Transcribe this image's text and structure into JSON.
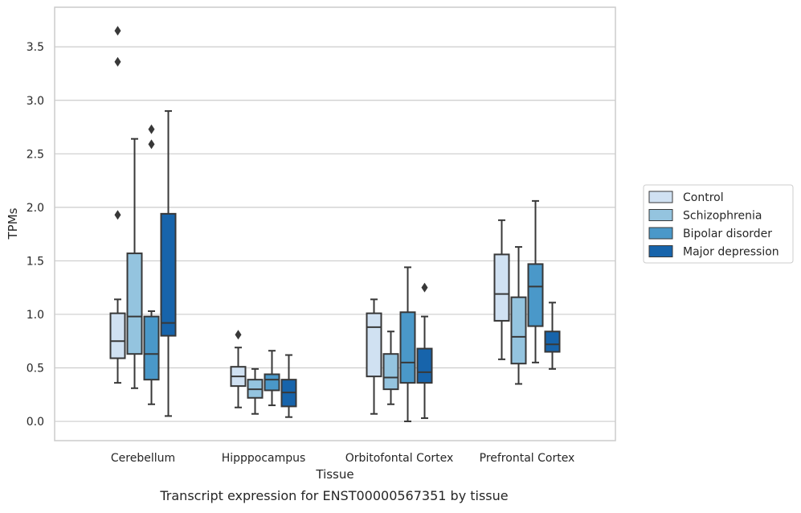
{
  "chart_data": {
    "type": "box",
    "title": "Transcript expression for ENST00000567351 by tissue",
    "xlabel": "Tissue",
    "ylabel": "TPMs",
    "ylim": [
      -0.18,
      3.87
    ],
    "yticks": [
      "0.0",
      "0.5",
      "1.0",
      "1.5",
      "2.0",
      "2.5",
      "3.0",
      "3.5"
    ],
    "grid": true,
    "legend_position": "right",
    "categories": [
      "Cerebellum",
      "Hipppocampus",
      "Orbitofontal Cortex",
      "Prefrontal Cortex"
    ],
    "series": [
      {
        "name": "Control",
        "color": "#d0e1f2",
        "boxes": [
          {
            "whislo": 0.36,
            "q1": 0.59,
            "med": 0.75,
            "q3": 1.01,
            "whishi": 1.14,
            "fliers": [
              1.93,
              3.36,
              3.65
            ]
          },
          {
            "whislo": 0.13,
            "q1": 0.33,
            "med": 0.42,
            "q3": 0.51,
            "whishi": 0.69,
            "fliers": [
              0.81
            ]
          },
          {
            "whislo": 0.07,
            "q1": 0.42,
            "med": 0.88,
            "q3": 1.01,
            "whishi": 1.14,
            "fliers": []
          },
          {
            "whislo": 0.58,
            "q1": 0.94,
            "med": 1.19,
            "q3": 1.56,
            "whishi": 1.88,
            "fliers": []
          }
        ]
      },
      {
        "name": "Schizophrenia",
        "color": "#94c4df",
        "boxes": [
          {
            "whislo": 0.31,
            "q1": 0.63,
            "med": 0.98,
            "q3": 1.57,
            "whishi": 2.64,
            "fliers": []
          },
          {
            "whislo": 0.07,
            "q1": 0.22,
            "med": 0.3,
            "q3": 0.39,
            "whishi": 0.49,
            "fliers": []
          },
          {
            "whislo": 0.16,
            "q1": 0.3,
            "med": 0.41,
            "q3": 0.63,
            "whishi": 0.84,
            "fliers": []
          },
          {
            "whislo": 0.35,
            "q1": 0.54,
            "med": 0.79,
            "q3": 1.16,
            "whishi": 1.63,
            "fliers": []
          }
        ]
      },
      {
        "name": "Bipolar disorder",
        "color": "#4a98c9",
        "boxes": [
          {
            "whislo": 0.16,
            "q1": 0.39,
            "med": 0.63,
            "q3": 0.98,
            "whishi": 1.03,
            "fliers": [
              2.59,
              2.73
            ]
          },
          {
            "whislo": 0.15,
            "q1": 0.29,
            "med": 0.39,
            "q3": 0.44,
            "whishi": 0.66,
            "fliers": []
          },
          {
            "whislo": 0.0,
            "q1": 0.36,
            "med": 0.55,
            "q3": 1.02,
            "whishi": 1.44,
            "fliers": []
          },
          {
            "whislo": 0.55,
            "q1": 0.89,
            "med": 1.26,
            "q3": 1.47,
            "whishi": 2.06,
            "fliers": []
          }
        ]
      },
      {
        "name": "Major depression",
        "color": "#1764ab",
        "boxes": [
          {
            "whislo": 0.05,
            "q1": 0.8,
            "med": 0.92,
            "q3": 1.94,
            "whishi": 2.9,
            "fliers": []
          },
          {
            "whislo": 0.04,
            "q1": 0.14,
            "med": 0.27,
            "q3": 0.39,
            "whishi": 0.62,
            "fliers": []
          },
          {
            "whislo": 0.03,
            "q1": 0.36,
            "med": 0.46,
            "q3": 0.68,
            "whishi": 0.98,
            "fliers": [
              1.25
            ]
          },
          {
            "whislo": 0.49,
            "q1": 0.65,
            "med": 0.72,
            "q3": 0.84,
            "whishi": 1.11,
            "fliers": []
          }
        ]
      }
    ]
  }
}
